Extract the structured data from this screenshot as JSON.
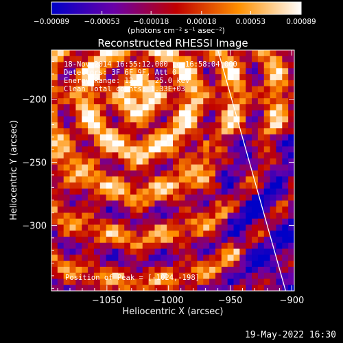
{
  "chart_data": {
    "type": "heatmap",
    "title": "Reconstructed RHESSI Image",
    "xlabel": "Heliocentric X (arcsec)",
    "ylabel": "Heliocentric Y (arcsec)",
    "xlim": [
      -1095,
      -898
    ],
    "ylim": [
      -352,
      -161
    ],
    "xticks": [
      -1050,
      -1000,
      -950,
      -900
    ],
    "xtick_labels": [
      "−1050",
      "−1000",
      "−950",
      "−900"
    ],
    "yticks": [
      -300,
      -250,
      -200
    ],
    "ytick_labels": [
      "−300",
      "−250",
      "−200"
    ],
    "colorbar": {
      "range": [
        -0.00089,
        0.00089
      ],
      "ticks": [
        -0.00089,
        -0.00053,
        -0.00018,
        0.00018,
        0.00053,
        0.00089
      ],
      "tick_labels": [
        "−0.00089",
        "−0.00053",
        "−0.00018",
        "0.00018",
        "0.00053",
        "0.00089"
      ],
      "unit_label": "(photons cm⁻² s⁻¹ asec⁻²)"
    },
    "limb_line": {
      "x": [
        -960,
        -905
      ],
      "y": [
        -161,
        -352
      ]
    },
    "annotations": [
      "18-Nov-2014 16:55:12.000 to 16:58:04.000",
      "Detectors: 3F 6F 9F, Att 0",
      "Energy Range: 12.0 - 25.0 keV",
      "Clean    Total counts: 1.33E+03"
    ],
    "peak_label": "Position of Peak = [-1024,-198]",
    "peak": [
      -1024,
      -198
    ],
    "grid": false
  },
  "footer": {
    "timestamp": "19-May-2022 16:30"
  }
}
